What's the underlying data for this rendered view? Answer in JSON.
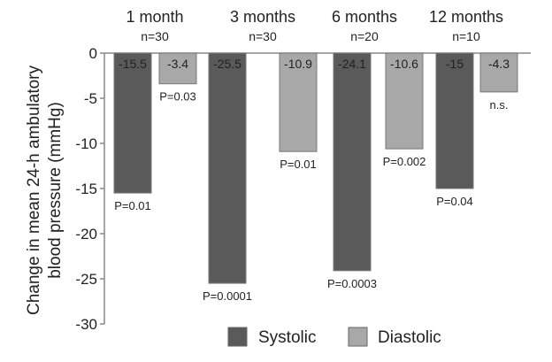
{
  "chart_data": {
    "type": "bar",
    "title": "",
    "ylabel": [
      "Change in mean 24-h ambulatory",
      "blood pressure (mmHg)"
    ],
    "xlabel": "",
    "ylim": [
      -30,
      0
    ],
    "yticks": [
      "0",
      "-5",
      "-10",
      "-15",
      "-20",
      "-25",
      "-30"
    ],
    "grid": false,
    "legend_placement": "bottom",
    "categories": [
      {
        "label": "1 month",
        "n": "n=30"
      },
      {
        "label": "3 months",
        "n": "n=30"
      },
      {
        "label": "6 months",
        "n": "n=20"
      },
      {
        "label": "12 months",
        "n": "n=10"
      }
    ],
    "series": [
      {
        "name": "Systolic",
        "color": "#5a5a5a",
        "values": [
          -15.5,
          -25.5,
          -24.1,
          -15
        ],
        "labels": [
          "-15.5",
          "-25.5",
          "-24.1",
          "-15"
        ],
        "pvalues": [
          "P=0.01",
          "P=0.0001",
          "P=0.0003",
          "P=0.04"
        ]
      },
      {
        "name": "Diastolic",
        "color": "#a8a8a8",
        "values": [
          -3.4,
          -10.9,
          -10.6,
          -4.3
        ],
        "labels": [
          "-3.4",
          "-10.9",
          "-10.6",
          "-4.3"
        ],
        "pvalues": [
          "P=0.03",
          "P=0.01",
          "P=0.002",
          "n.s."
        ]
      }
    ]
  }
}
